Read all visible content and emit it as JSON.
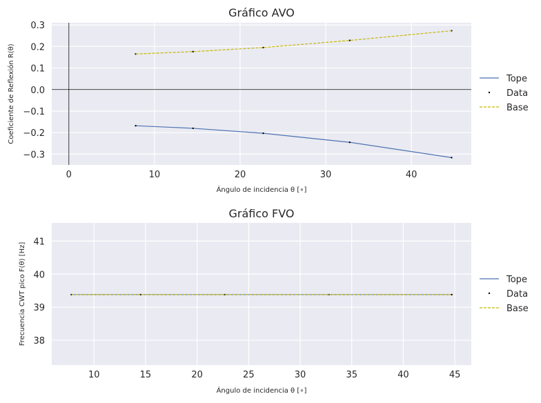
{
  "chart_data": [
    {
      "type": "line",
      "title": "Gráfico AVO",
      "xlabel": "Ángulo de incidencia θ [∘]",
      "ylabel": "Coeficiente de Reflexión R(θ)",
      "xlim": [
        -2,
        47
      ],
      "ylim": [
        -0.35,
        0.31
      ],
      "xticks": [
        0,
        10,
        20,
        30,
        40
      ],
      "xtick_labels": [
        "0",
        "10",
        "20",
        "30",
        "40"
      ],
      "yticks": [
        -0.3,
        -0.2,
        -0.1,
        0.0,
        0.1,
        0.2,
        0.3
      ],
      "ytick_labels": [
        "−0.3",
        "−0.2",
        "−0.1",
        "0.0",
        "0.1",
        "0.2",
        "0.3"
      ],
      "grid": true,
      "zero_lines": true,
      "legend_position": "right",
      "series": [
        {
          "name": "Tope",
          "style": "solid",
          "color": "#4c72b0",
          "x": [
            7.8,
            14.5,
            22.7,
            32.8,
            44.7
          ],
          "y": [
            -0.168,
            -0.18,
            -0.203,
            -0.245,
            -0.316
          ]
        },
        {
          "name": "Data",
          "style": "points",
          "color": "#000000",
          "x": [
            7.8,
            14.5,
            22.7,
            32.8,
            44.7,
            7.8,
            14.5,
            22.7,
            32.8,
            44.7
          ],
          "y": [
            -0.168,
            -0.18,
            -0.203,
            -0.245,
            -0.316,
            0.165,
            0.176,
            0.195,
            0.228,
            0.273
          ]
        },
        {
          "name": "Base",
          "style": "dashed",
          "color": "#c4b800",
          "x": [
            7.8,
            14.5,
            22.7,
            32.8,
            44.7
          ],
          "y": [
            0.165,
            0.176,
            0.195,
            0.228,
            0.273
          ]
        }
      ]
    },
    {
      "type": "line",
      "title": "Gráfico FVO",
      "xlabel": "Ángulo de incidencia θ [∘]",
      "ylabel": "Frecuencia CWT pico F(θ) [Hz]",
      "xlim": [
        5.9,
        46.6
      ],
      "ylim": [
        37.25,
        41.55
      ],
      "xticks": [
        10,
        15,
        20,
        25,
        30,
        35,
        40,
        45
      ],
      "xtick_labels": [
        "10",
        "15",
        "20",
        "25",
        "30",
        "35",
        "40",
        "45"
      ],
      "yticks": [
        38,
        39,
        40,
        41
      ],
      "ytick_labels": [
        "38",
        "39",
        "40",
        "41"
      ],
      "grid": true,
      "zero_lines": false,
      "legend_position": "right",
      "series": [
        {
          "name": "Tope",
          "style": "solid",
          "color": "#4c72b0",
          "x": [
            7.8,
            14.5,
            22.7,
            32.8,
            44.7
          ],
          "y": [
            39.38,
            39.38,
            39.38,
            39.38,
            39.38
          ]
        },
        {
          "name": "Data",
          "style": "points",
          "color": "#000000",
          "x": [
            7.8,
            14.5,
            22.7,
            32.8,
            44.7
          ],
          "y": [
            39.38,
            39.38,
            39.38,
            39.38,
            39.38
          ]
        },
        {
          "name": "Base",
          "style": "dashed",
          "color": "#c4b800",
          "x": [
            7.8,
            14.5,
            22.7,
            32.8,
            44.7
          ],
          "y": [
            39.38,
            39.38,
            39.38,
            39.38,
            39.38
          ]
        }
      ]
    }
  ]
}
